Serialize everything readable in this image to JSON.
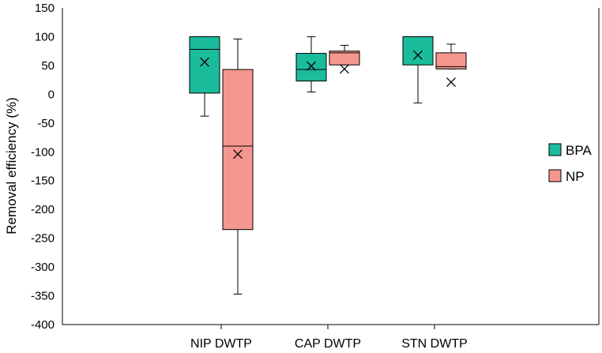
{
  "chart_data": {
    "type": "box",
    "title": "",
    "xlabel": "",
    "ylabel": "Removal efficiency (%)",
    "ylim": [
      -400,
      150
    ],
    "yticks": [
      150,
      100,
      50,
      0,
      -50,
      -100,
      -150,
      -200,
      -250,
      -300,
      -350,
      -400
    ],
    "categories": [
      "NIP DWTP",
      "CAP DWTP",
      "STN DWTP"
    ],
    "legend_position": "right",
    "grid": false,
    "series": [
      {
        "name": "BPA",
        "color": "#1abc9c",
        "boxes": [
          {
            "min": -38,
            "q1": 2,
            "median": 78,
            "q3": 100,
            "max": 100,
            "mean": 56
          },
          {
            "min": 4,
            "q1": 23,
            "median": 43,
            "q3": 71,
            "max": 100,
            "mean": 49
          },
          {
            "min": -15,
            "q1": 51,
            "median": 100,
            "q3": 100,
            "max": 100,
            "mean": 68
          }
        ]
      },
      {
        "name": "NP",
        "color": "#f4978e",
        "boxes": [
          {
            "min": -347,
            "q1": -235,
            "median": -90,
            "q3": 43,
            "max": 96,
            "mean": -104
          },
          {
            "min": 51,
            "q1": 51,
            "median": 72,
            "q3": 75,
            "max": 85,
            "mean": 44
          },
          {
            "min": 44,
            "q1": 44,
            "median": 48,
            "q3": 72,
            "max": 87,
            "mean": 21
          }
        ]
      }
    ]
  }
}
